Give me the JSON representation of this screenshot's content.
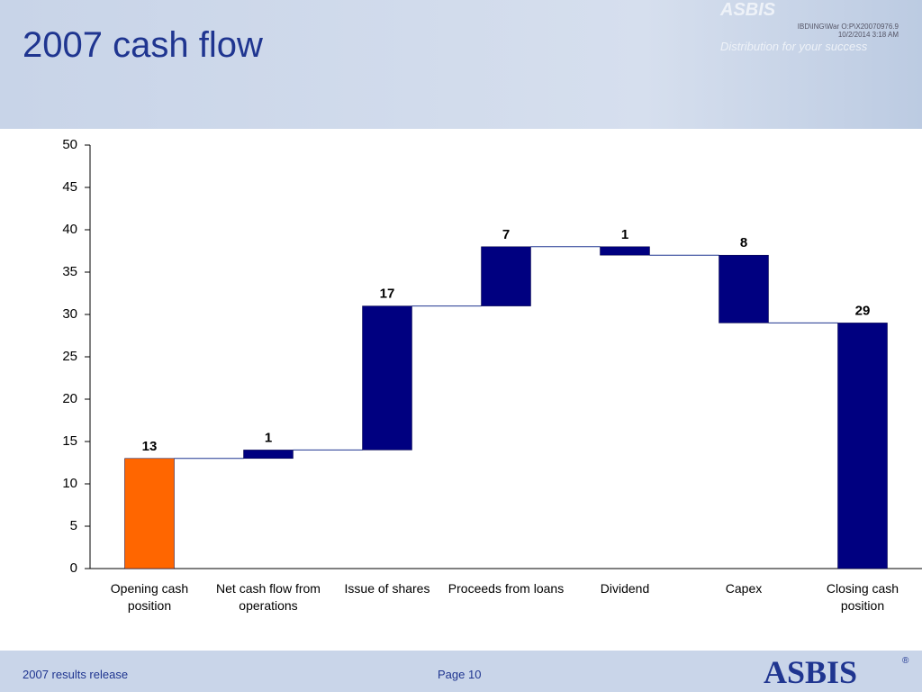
{
  "header": {
    "title": "2007 cash flow",
    "ref": "IBD\\ING\\War O:P\\X20070976.9",
    "date": "10/2/2014 3:18 AM",
    "logo": "ASBIS",
    "slogan": "Distribution for your success"
  },
  "footer": {
    "left": "2007 results release",
    "page": "Page 10",
    "logo": "ASBIS",
    "mark": "®"
  },
  "chart_data": {
    "type": "waterfall",
    "categories": [
      "Opening cash position",
      "Net cash flow from operations",
      "Issue of shares",
      "Proceeds from loans",
      "Dividend",
      "Capex",
      "Closing cash position"
    ],
    "values": [
      13,
      1,
      17,
      7,
      -1,
      -8,
      29
    ],
    "value_labels": [
      "13",
      "1",
      "17",
      "7",
      "1",
      "8",
      "29"
    ],
    "totals": [
      true,
      false,
      false,
      false,
      false,
      false,
      true
    ],
    "colors": [
      "#ff6600",
      "#000080",
      "#000080",
      "#000080",
      "#000080",
      "#000080",
      "#000080"
    ],
    "label_color": "#1a80c4",
    "ylim": [
      0,
      50
    ],
    "yticks": [
      0,
      5,
      10,
      15,
      20,
      25,
      30,
      35,
      40,
      45,
      50
    ]
  }
}
